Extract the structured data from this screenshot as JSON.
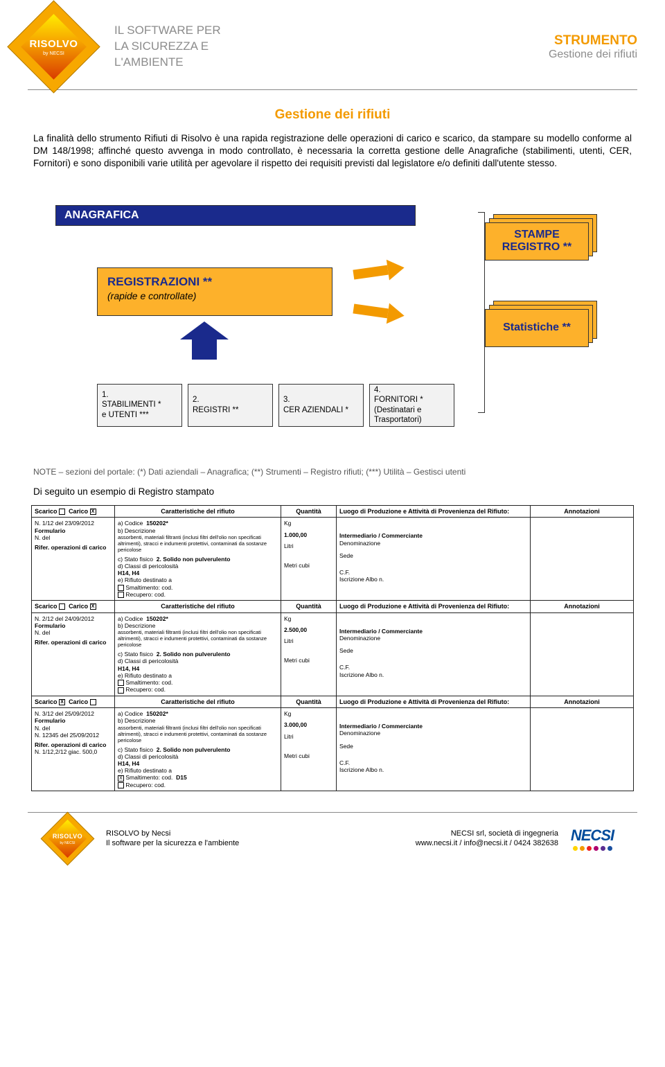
{
  "header": {
    "logo_title": "RISOLVO",
    "logo_sub": "by NECSI",
    "mid_l1": "IL SOFTWARE PER",
    "mid_l2": "LA SICUREZZA E",
    "mid_l3": "L'AMBIENTE",
    "right_l1": "STRUMENTO",
    "right_l2": "Gestione dei rifiuti"
  },
  "doc": {
    "title": "Gestione dei rifiuti",
    "para": "La finalità dello strumento Rifiuti di Risolvo è una rapida registrazione delle operazioni di carico e scarico, da stampare su modello conforme al DM 148/1998; affinché questo avvenga in modo controllato, è necessaria la corretta gestione delle Anagrafiche (stabilimenti, utenti, CER, Fornitori) e sono disponibili varie utilità per agevolare il rispetto dei requisiti previsti dal legislatore e/o definiti dall'utente stesso."
  },
  "diagram": {
    "reg_title": "REGISTRAZIONI **",
    "reg_sub": "(rapide e controllate)",
    "stampe": "STAMPE REGISTRO **",
    "stat": "Statistiche **",
    "anagrafica": "ANAGRAFICA",
    "sub1_a": "1.",
    "sub1_b": "STABILIMENTI *",
    "sub1_c": "e UTENTI ***",
    "sub2_a": "2.",
    "sub2_b": "REGISTRI **",
    "sub3_a": "3.",
    "sub3_b": "CER AZIENDALI *",
    "sub4_a": "4.",
    "sub4_b": "FORNITORI *",
    "sub4_c": "(Destinatari e",
    "sub4_d": "Trasportatori)",
    "note": "NOTE – sezioni del portale: (*) Dati aziendali – Anagrafica; (**) Strumenti – Registro rifiuti; (***) Utilità – Gestisci utenti"
  },
  "section_lead": "Di seguito un esempio di Registro stampato",
  "colors": {
    "accent_orange": "#f39a00",
    "box_orange": "#fdb12b",
    "brand_blue": "#1a2a8c",
    "grey_text": "#8c8c8c"
  },
  "registro": {
    "headers": {
      "c1_scarico": "Scarico",
      "c1_carico": "Carico",
      "c2": "Caratteristiche del rifiuto",
      "c3": "Quantità",
      "c4": "Luogo di Produzione e Attività di Provenienza del Rifiuto:",
      "c5": "Annotazioni"
    },
    "labels": {
      "formulario": "Formulario",
      "n_del": "N.   del",
      "rifer": "Rifer. operazioni di carico",
      "a_cod": "a) Codice",
      "b_desc": "b) Descrizione",
      "desc_text": "assorbenti, materiali filtranti (inclusi filtri dell'olio non specificati altrimenti), stracci e indumenti protettivi, contaminati da sostanze pericolose",
      "c_stato": "c) Stato fisico",
      "stato_val": "2. Solido non pulverulento",
      "d_classi": "d) Classi di pericolosità",
      "classi_val": "H14, H4",
      "e_dest": "e) Rifiuto destinato a",
      "smalt": "Smaltimento: cod.",
      "recup": "Recupero: cod.",
      "kg": "Kg",
      "litri": "Litri",
      "mc": "Metri cubi",
      "interm": "Intermediario / Commerciante",
      "denom": "Denominazione",
      "sede": "Sede",
      "cf": "C.F.",
      "iscr": "Iscrizione Albo n."
    },
    "rows": [
      {
        "n": "N. 1/12 del 23/09/2012",
        "scarico_x": "",
        "carico_x": "X",
        "codice": "150202*",
        "qty": "1.000,00",
        "rifer_extra": "",
        "smalt_x": "",
        "smalt_cod": ""
      },
      {
        "n": "N. 2/12 del 24/09/2012",
        "scarico_x": "",
        "carico_x": "X",
        "codice": "150202*",
        "qty": "2.500,00",
        "rifer_extra": "",
        "smalt_x": "",
        "smalt_cod": ""
      },
      {
        "n": "N. 3/12 del 25/09/2012",
        "scarico_x": "X",
        "carico_x": "",
        "codice": "150202*",
        "qty": "3.000,00",
        "rifer_extra": "N. 12345 del 25/09/2012",
        "rifer2": "N. 1/12,2/12 giac. 500,0",
        "smalt_x": "X",
        "smalt_cod": "D15"
      }
    ]
  },
  "footer": {
    "mid_l1": "RISOLVO by Necsi",
    "mid_l2": "Il software per la sicurezza e l'ambiente",
    "right_l1": "NECSI srl, società di ingegneria",
    "right_l2": "www.necsi.it / info@necsi.it / 0424 382638",
    "necsi": "NECSI",
    "dot_colors": [
      "#ffd400",
      "#f39a00",
      "#e22",
      "#b0006e",
      "#5a2d91",
      "#1a4fa0"
    ]
  }
}
